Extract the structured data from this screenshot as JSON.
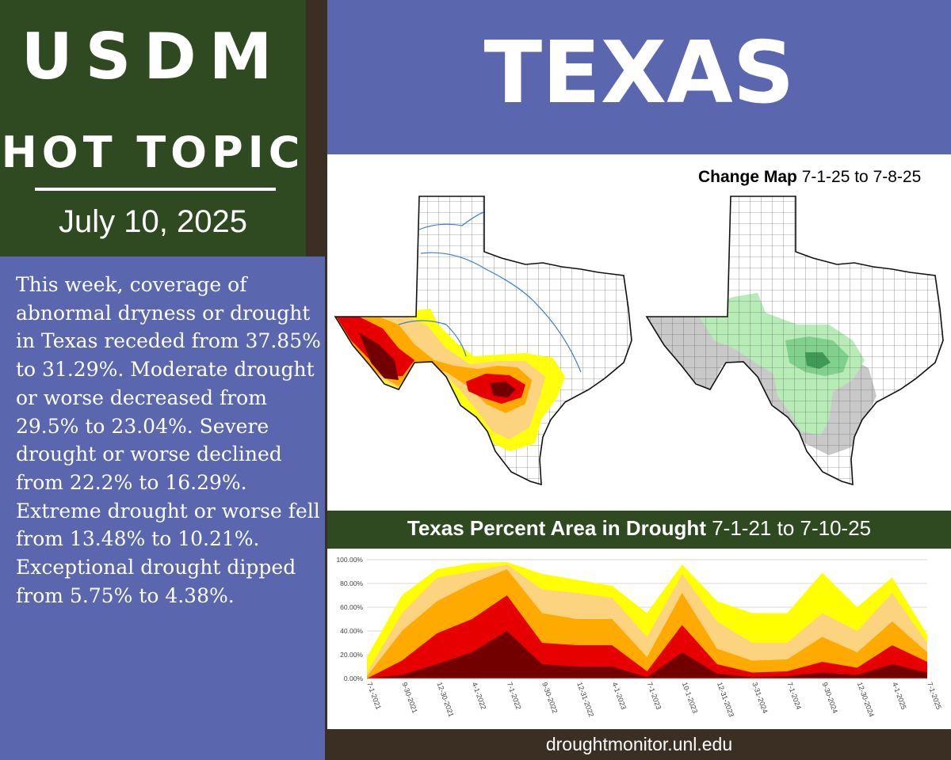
{
  "header": {
    "brand": "USDM",
    "subtitle": "HOT TOPIC",
    "date": "July 10, 2025",
    "title": "TEXAS"
  },
  "summary": {
    "text": "This week, coverage of abnormal dryness or drought in Texas receded from 37.85% to 31.29%. Moderate drought or worse decreased from 29.5% to 23.04%. Severe drought or worse declined from 22.2% to 16.29%. Extreme drought or worse fell from 13.48% to 10.21%. Exceptional drought dipped from 5.75% to 4.38%."
  },
  "maps": {
    "change_label_bold": "Change Map",
    "change_label_dates": "7-1-25 to 7-8-25"
  },
  "chart_data": {
    "type": "area",
    "title": "Texas Percent Area in Drought",
    "title_dates": "7-1-21 to 7-10-25",
    "x": [
      "7-1-2021",
      "9-30-2021",
      "12-30-2021",
      "4-1-2022",
      "7-1-2022",
      "9-30-2022",
      "12-31-2022",
      "4-1-2023",
      "7-1-2023",
      "10-1-2023",
      "12-31-2023",
      "3-31-2024",
      "7-1-2024",
      "9-30-2024",
      "12-30-2024",
      "4-1-2025",
      "7-1-2025"
    ],
    "ylim": [
      0,
      100
    ],
    "yticks": [
      "0.00%",
      "20.00%",
      "40.00%",
      "60.00%",
      "80.00%",
      "100.00%"
    ],
    "series": [
      {
        "color": "#ffff00",
        "values": [
          18,
          70,
          92,
          97,
          98,
          88,
          83,
          78,
          55,
          96,
          65,
          55,
          55,
          89,
          60,
          85,
          37
        ]
      },
      {
        "color": "#fcd37f",
        "values": [
          5,
          55,
          85,
          90,
          96,
          75,
          72,
          68,
          35,
          88,
          48,
          30,
          30,
          55,
          40,
          72,
          30
        ]
      },
      {
        "color": "#ffaa00",
        "values": [
          2,
          40,
          65,
          80,
          92,
          55,
          50,
          50,
          18,
          72,
          25,
          15,
          16,
          35,
          22,
          48,
          22
        ]
      },
      {
        "color": "#e60000",
        "values": [
          0,
          15,
          38,
          50,
          70,
          30,
          28,
          28,
          6,
          45,
          12,
          5,
          6,
          14,
          9,
          28,
          14
        ]
      },
      {
        "color": "#730000",
        "values": [
          0,
          3,
          12,
          22,
          40,
          12,
          10,
          10,
          1,
          22,
          4,
          1,
          2,
          5,
          3,
          12,
          5
        ]
      }
    ]
  },
  "footer": {
    "url": "droughtmonitor.unl.edu"
  }
}
